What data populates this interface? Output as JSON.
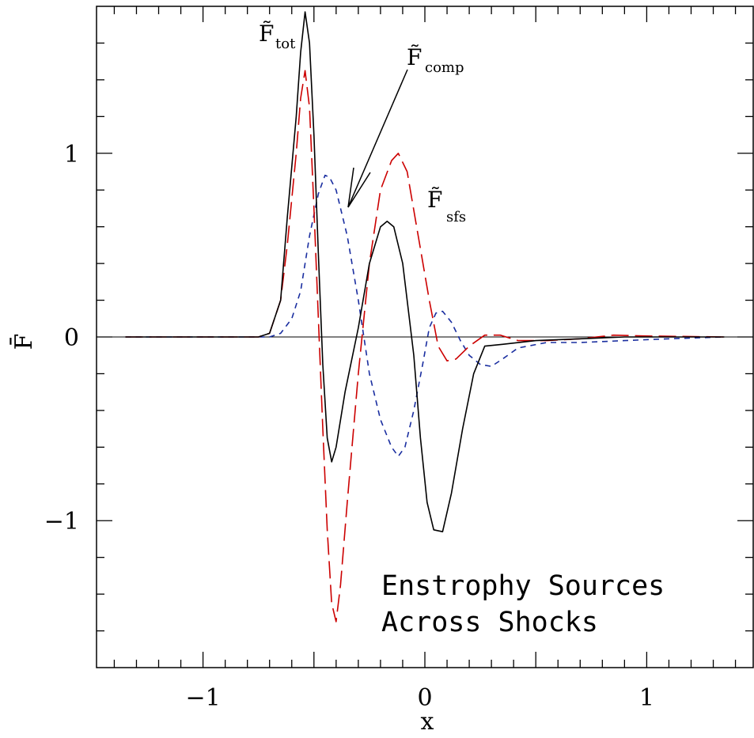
{
  "chart_data": {
    "type": "line",
    "title": "",
    "xlabel": "x",
    "ylabel": "F̄",
    "xlim": [
      -1.48,
      1.48
    ],
    "ylim": [
      -1.8,
      1.8
    ],
    "grid": false,
    "x_ticks": [
      {
        "value": -1,
        "label": "−1"
      },
      {
        "value": 0,
        "label": "0"
      },
      {
        "value": 1,
        "label": "1"
      }
    ],
    "y_ticks": [
      {
        "value": -1,
        "label": "−1"
      },
      {
        "value": 0,
        "label": "0"
      },
      {
        "value": 1,
        "label": "1"
      }
    ],
    "caption": [
      "Enstrophy Sources",
      "Across Shocks"
    ],
    "series": [
      {
        "name": "F̃tot",
        "color": "#000000",
        "dash": "solid",
        "points": [
          [
            -1.35,
            0
          ],
          [
            -0.75,
            0
          ],
          [
            -0.7,
            0.02
          ],
          [
            -0.65,
            0.2
          ],
          [
            -0.62,
            0.65
          ],
          [
            -0.58,
            1.2
          ],
          [
            -0.56,
            1.55
          ],
          [
            -0.54,
            1.77
          ],
          [
            -0.52,
            1.6
          ],
          [
            -0.5,
            1.1
          ],
          [
            -0.48,
            0.45
          ],
          [
            -0.46,
            -0.15
          ],
          [
            -0.44,
            -0.55
          ],
          [
            -0.42,
            -0.68
          ],
          [
            -0.4,
            -0.6
          ],
          [
            -0.36,
            -0.3
          ],
          [
            -0.3,
            0.05
          ],
          [
            -0.25,
            0.4
          ],
          [
            -0.2,
            0.6
          ],
          [
            -0.17,
            0.63
          ],
          [
            -0.14,
            0.6
          ],
          [
            -0.1,
            0.4
          ],
          [
            -0.05,
            -0.1
          ],
          [
            -0.02,
            -0.55
          ],
          [
            0.01,
            -0.9
          ],
          [
            0.04,
            -1.05
          ],
          [
            0.08,
            -1.06
          ],
          [
            0.12,
            -0.85
          ],
          [
            0.17,
            -0.5
          ],
          [
            0.22,
            -0.2
          ],
          [
            0.27,
            -0.05
          ],
          [
            0.35,
            -0.04
          ],
          [
            0.5,
            -0.02
          ],
          [
            0.7,
            -0.01
          ],
          [
            0.9,
            0
          ],
          [
            1.35,
            0
          ]
        ]
      },
      {
        "name": "F̃sfs",
        "color": "#cc0000",
        "dash": "long",
        "points": [
          [
            -1.35,
            0
          ],
          [
            -0.75,
            0
          ],
          [
            -0.7,
            0.02
          ],
          [
            -0.65,
            0.2
          ],
          [
            -0.62,
            0.5
          ],
          [
            -0.58,
            1.0
          ],
          [
            -0.56,
            1.3
          ],
          [
            -0.54,
            1.45
          ],
          [
            -0.52,
            1.25
          ],
          [
            -0.5,
            0.7
          ],
          [
            -0.48,
            0.1
          ],
          [
            -0.46,
            -0.5
          ],
          [
            -0.44,
            -1.05
          ],
          [
            -0.42,
            -1.45
          ],
          [
            -0.4,
            -1.55
          ],
          [
            -0.38,
            -1.35
          ],
          [
            -0.35,
            -0.9
          ],
          [
            -0.3,
            -0.2
          ],
          [
            -0.25,
            0.4
          ],
          [
            -0.2,
            0.8
          ],
          [
            -0.15,
            0.96
          ],
          [
            -0.12,
            1.0
          ],
          [
            -0.08,
            0.9
          ],
          [
            -0.03,
            0.55
          ],
          [
            0.02,
            0.2
          ],
          [
            0.06,
            -0.05
          ],
          [
            0.1,
            -0.13
          ],
          [
            0.14,
            -0.12
          ],
          [
            0.2,
            -0.05
          ],
          [
            0.27,
            0.01
          ],
          [
            0.34,
            0.01
          ],
          [
            0.42,
            -0.02
          ],
          [
            0.55,
            -0.02
          ],
          [
            0.7,
            -0.01
          ],
          [
            0.85,
            0.01
          ],
          [
            1.0,
            0.005
          ],
          [
            1.35,
            0
          ]
        ]
      },
      {
        "name": "F̃comp",
        "color": "#1a2ea0",
        "dash": "short",
        "points": [
          [
            -1.35,
            0
          ],
          [
            -0.8,
            0
          ],
          [
            -0.7,
            0
          ],
          [
            -0.65,
            0.02
          ],
          [
            -0.6,
            0.1
          ],
          [
            -0.56,
            0.25
          ],
          [
            -0.52,
            0.55
          ],
          [
            -0.48,
            0.78
          ],
          [
            -0.45,
            0.88
          ],
          [
            -0.43,
            0.87
          ],
          [
            -0.4,
            0.8
          ],
          [
            -0.35,
            0.55
          ],
          [
            -0.3,
            0.2
          ],
          [
            -0.25,
            -0.2
          ],
          [
            -0.2,
            -0.45
          ],
          [
            -0.15,
            -0.6
          ],
          [
            -0.12,
            -0.65
          ],
          [
            -0.09,
            -0.6
          ],
          [
            -0.05,
            -0.4
          ],
          [
            -0.01,
            -0.15
          ],
          [
            0.02,
            0.05
          ],
          [
            0.05,
            0.13
          ],
          [
            0.08,
            0.14
          ],
          [
            0.12,
            0.08
          ],
          [
            0.16,
            -0.02
          ],
          [
            0.2,
            -0.1
          ],
          [
            0.25,
            -0.15
          ],
          [
            0.3,
            -0.16
          ],
          [
            0.35,
            -0.12
          ],
          [
            0.42,
            -0.06
          ],
          [
            0.55,
            -0.03
          ],
          [
            0.7,
            -0.03
          ],
          [
            0.9,
            -0.02
          ],
          [
            1.1,
            -0.01
          ],
          [
            1.35,
            0
          ]
        ]
      }
    ],
    "annotations": [
      {
        "base": "F̃",
        "sub": "tot"
      },
      {
        "base": "F̃",
        "sub": "comp"
      },
      {
        "base": "F̃",
        "sub": "sfs"
      }
    ]
  }
}
